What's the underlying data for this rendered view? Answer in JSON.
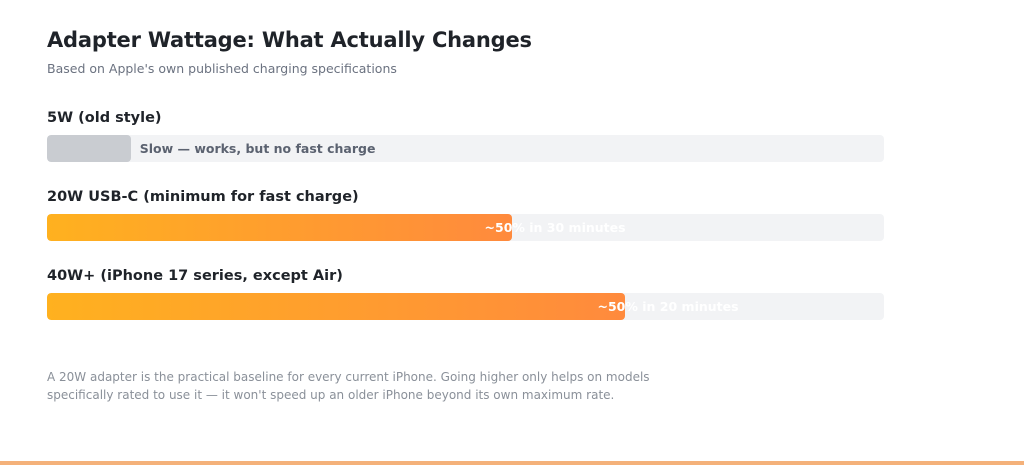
{
  "header": {
    "title": "Adapter Wattage: What Actually Changes",
    "subtitle": "Based on Apple's own published charging specifications"
  },
  "chart_data": {
    "type": "bar",
    "orientation": "horizontal",
    "categories": [
      "5W (old style)",
      "20W USB-C (minimum for fast charge)",
      "40W+ (iPhone 17 series, except Air)"
    ],
    "values": [
      10,
      55.5,
      69
    ],
    "value_scale": "percent of track",
    "bar_labels": [
      "Slow — works, but no fast charge",
      "~50% in 30 minutes",
      "~50% in 20 minutes"
    ],
    "colors": {
      "slow": "#c9ccd1",
      "fast_start": "#ffb11f",
      "fast_end": "#ff8a3d",
      "track": "#f2f3f5"
    },
    "grid": false,
    "legend": "none"
  },
  "footnote": {
    "line1": "A 20W adapter is the practical baseline for every current iPhone. Going higher only helps on models",
    "line2": "specifically rated to use it — it won't speed up an older iPhone beyond its own maximum rate."
  }
}
